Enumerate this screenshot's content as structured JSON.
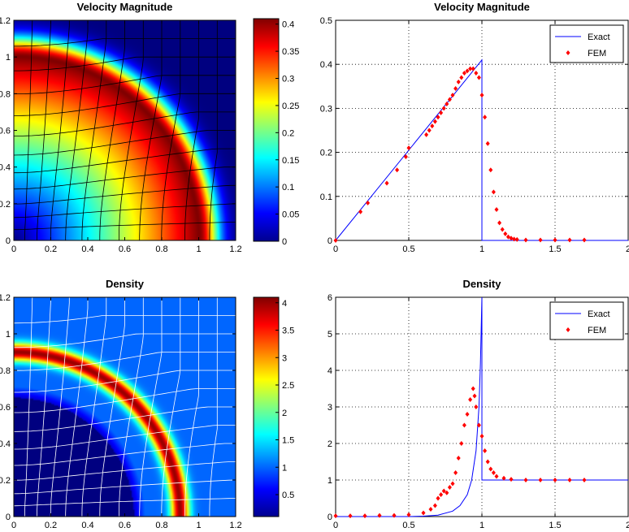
{
  "figure": {
    "background": "#ffffff",
    "colormap": "jet"
  },
  "chart_data": [
    {
      "type": "heatmap",
      "title": "Velocity Magnitude",
      "xlabel": "",
      "ylabel": "",
      "xlim": [
        0,
        1.2
      ],
      "ylim": [
        0,
        1.2
      ],
      "xticks": [
        "0",
        "0.2",
        "0.4",
        "0.6",
        "0.8",
        "1",
        "1.2"
      ],
      "yticks": [
        "0",
        "0.2",
        "0.4",
        "0.6",
        "0.8",
        "1",
        "1.2"
      ],
      "field": {
        "kind": "radial_shock",
        "inner_slope": 0.41,
        "peak_r": 1.0,
        "peak": 0.41,
        "decay_width": 0.16
      },
      "mesh_color": "#000000",
      "colorbar": {
        "ticks": [
          "0",
          "0.05",
          "0.1",
          "0.15",
          "0.2",
          "0.25",
          "0.3",
          "0.35",
          "0.4"
        ],
        "clim": [
          0,
          0.41
        ]
      }
    },
    {
      "type": "line",
      "title": "Velocity Magnitude",
      "xlabel": "",
      "ylabel": "",
      "xlim": [
        0,
        2
      ],
      "ylim": [
        0,
        0.5
      ],
      "xticks": [
        "0",
        "0.5",
        "1",
        "1.5",
        "2"
      ],
      "yticks": [
        "0",
        "0.1",
        "0.2",
        "0.3",
        "0.4",
        "0.5"
      ],
      "grid": true,
      "legend": "top-right",
      "series": [
        {
          "name": "Exact",
          "style": "line",
          "color": "#0000ff",
          "x": [
            0,
            1.0,
            1.0,
            2.0
          ],
          "y": [
            0,
            0.41,
            0,
            0
          ]
        },
        {
          "name": "FEM",
          "style": "markers",
          "color": "#ff0000",
          "x": [
            0.0,
            0.17,
            0.22,
            0.35,
            0.42,
            0.48,
            0.5,
            0.62,
            0.64,
            0.66,
            0.68,
            0.7,
            0.72,
            0.74,
            0.76,
            0.78,
            0.8,
            0.82,
            0.84,
            0.86,
            0.88,
            0.9,
            0.92,
            0.94,
            0.96,
            0.98,
            1.0,
            1.02,
            1.04,
            1.06,
            1.08,
            1.1,
            1.12,
            1.14,
            1.16,
            1.18,
            1.2,
            1.22,
            1.24,
            1.3,
            1.4,
            1.5,
            1.6,
            1.7
          ],
          "y": [
            0.0,
            0.065,
            0.085,
            0.13,
            0.16,
            0.19,
            0.21,
            0.24,
            0.25,
            0.26,
            0.27,
            0.28,
            0.29,
            0.3,
            0.31,
            0.32,
            0.33,
            0.345,
            0.36,
            0.37,
            0.38,
            0.385,
            0.39,
            0.39,
            0.38,
            0.37,
            0.33,
            0.28,
            0.22,
            0.16,
            0.11,
            0.07,
            0.04,
            0.025,
            0.015,
            0.008,
            0.005,
            0.003,
            0.002,
            0.001,
            0.001,
            0.001,
            0.001,
            0.001
          ]
        }
      ]
    },
    {
      "type": "heatmap",
      "title": "Density",
      "xlabel": "",
      "ylabel": "",
      "xlim": [
        0,
        1.2
      ],
      "ylim": [
        0,
        1.2
      ],
      "xticks": [
        "0",
        "0.2",
        "0.4",
        "0.6",
        "0.8",
        "1",
        "1.2"
      ],
      "yticks": [
        "0",
        "0.2",
        "0.4",
        "0.6",
        "0.8",
        "1",
        "1.2"
      ],
      "field": {
        "kind": "density_shell",
        "base": 1.0,
        "peak_r": 0.9,
        "peak": 4.0,
        "width": 0.05,
        "vacuum_r": 0.65
      },
      "mesh_color": "#ffffff",
      "colorbar": {
        "ticks": [
          "0.5",
          "1",
          "1.5",
          "2",
          "2.5",
          "3",
          "3.5",
          "4"
        ],
        "clim": [
          0.1,
          4.1
        ]
      }
    },
    {
      "type": "line",
      "title": "Density",
      "xlabel": "",
      "ylabel": "",
      "xlim": [
        0,
        2
      ],
      "ylim": [
        0,
        6
      ],
      "xticks": [
        "0",
        "0.5",
        "1",
        "1.5",
        "2"
      ],
      "yticks": [
        "0",
        "1",
        "2",
        "3",
        "4",
        "5",
        "6"
      ],
      "grid": true,
      "legend": "top-right",
      "series": [
        {
          "name": "Exact",
          "style": "line",
          "color": "#0000ff",
          "x": [
            0,
            0.5,
            0.6,
            0.7,
            0.8,
            0.85,
            0.9,
            0.93,
            0.96,
            0.98,
            0.99,
            1.0,
            1.0,
            2.0
          ],
          "y": [
            0,
            0.0,
            0.01,
            0.04,
            0.15,
            0.3,
            0.6,
            1.0,
            1.8,
            3.0,
            4.2,
            6.0,
            1.0,
            1.0
          ]
        },
        {
          "name": "FEM",
          "style": "markers",
          "color": "#ff0000",
          "x": [
            0.0,
            0.1,
            0.2,
            0.3,
            0.4,
            0.5,
            0.6,
            0.65,
            0.68,
            0.7,
            0.72,
            0.74,
            0.76,
            0.78,
            0.8,
            0.82,
            0.84,
            0.86,
            0.88,
            0.9,
            0.92,
            0.94,
            0.95,
            0.96,
            0.98,
            1.0,
            1.02,
            1.04,
            1.06,
            1.08,
            1.1,
            1.15,
            1.2,
            1.3,
            1.4,
            1.5,
            1.6,
            1.7
          ],
          "y": [
            0.02,
            0.02,
            0.02,
            0.03,
            0.03,
            0.05,
            0.1,
            0.2,
            0.3,
            0.5,
            0.6,
            0.7,
            0.65,
            0.8,
            0.9,
            1.2,
            1.6,
            2.0,
            2.5,
            2.8,
            3.2,
            3.5,
            3.3,
            3.0,
            2.5,
            2.2,
            1.8,
            1.5,
            1.3,
            1.2,
            1.1,
            1.05,
            1.02,
            1.0,
            1.0,
            1.0,
            1.0,
            1.0
          ]
        }
      ]
    }
  ]
}
